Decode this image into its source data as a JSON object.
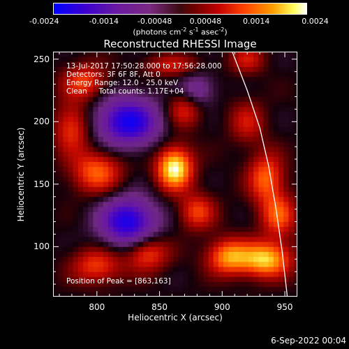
{
  "chart_data": {
    "type": "heatmap",
    "title": "Reconstructed RHESSI Image",
    "xlabel": "Heliocentric X (arcsec)",
    "ylabel": "Heliocentric Y (arcsec)",
    "xlim": [
      765,
      960
    ],
    "ylim": [
      60,
      256
    ],
    "xticks": [
      "800",
      "850",
      "900",
      "950"
    ],
    "yticks": [
      "100",
      "150",
      "200",
      "250"
    ],
    "colorbar": {
      "range": [
        -0.0024,
        0.0024
      ],
      "ticks": [
        "-0.0024",
        "-0.0014",
        "-0.00048",
        "0.00048",
        "0.0014",
        "0.0024"
      ],
      "unit_main": "(photons cm",
      "unit_exp1": "-2",
      "unit_mid1": " s",
      "unit_exp2": "-1",
      "unit_mid2": " asec",
      "unit_exp3": "-2",
      "unit_end": ")",
      "colormap": "blue-purple-black-red-orange-yellow-white"
    },
    "info_lines": [
      "13-Jul-2017 17:50:28.000 to 17:56:28.000",
      "Detectors: 3F 6F 8F, Att 0",
      "Energy Range: 12.0 - 25.0 keV",
      "Clean     Total counts: 1.17E+04"
    ],
    "peak_label": "Position of Peak = [863,163]",
    "peak": [
      863,
      163
    ],
    "sources": [
      {
        "x": 862,
        "y": 163,
        "intensity": 1.0,
        "sx": 10,
        "sy": 12
      },
      {
        "x": 935,
        "y": 90,
        "intensity": 0.85,
        "sx": 14,
        "sy": 10
      },
      {
        "x": 905,
        "y": 92,
        "intensity": 0.7,
        "sx": 12,
        "sy": 10
      },
      {
        "x": 935,
        "y": 155,
        "intensity": 0.6,
        "sx": 10,
        "sy": 14
      },
      {
        "x": 945,
        "y": 125,
        "intensity": 0.55,
        "sx": 10,
        "sy": 12
      },
      {
        "x": 800,
        "y": 160,
        "intensity": 0.6,
        "sx": 14,
        "sy": 12
      },
      {
        "x": 780,
        "y": 195,
        "intensity": 0.5,
        "sx": 10,
        "sy": 14
      },
      {
        "x": 800,
        "y": 85,
        "intensity": 0.5,
        "sx": 14,
        "sy": 10
      },
      {
        "x": 840,
        "y": 95,
        "intensity": 0.55,
        "sx": 12,
        "sy": 10
      },
      {
        "x": 880,
        "y": 128,
        "intensity": 0.5,
        "sx": 10,
        "sy": 10
      },
      {
        "x": 870,
        "y": 210,
        "intensity": 0.45,
        "sx": 10,
        "sy": 10
      },
      {
        "x": 790,
        "y": 232,
        "intensity": 0.5,
        "sx": 12,
        "sy": 10
      },
      {
        "x": 860,
        "y": 245,
        "intensity": 0.35,
        "sx": 16,
        "sy": 6
      },
      {
        "x": 920,
        "y": 200,
        "intensity": 0.35,
        "sx": 10,
        "sy": 12
      },
      {
        "x": 920,
        "y": 250,
        "intensity": 0.35,
        "sx": 10,
        "sy": 8
      },
      {
        "x": 825,
        "y": 200,
        "intensity": -0.9,
        "sx": 18,
        "sy": 14
      },
      {
        "x": 825,
        "y": 120,
        "intensity": -0.9,
        "sx": 16,
        "sy": 14
      },
      {
        "x": 880,
        "y": 225,
        "intensity": -0.4,
        "sx": 10,
        "sy": 10
      }
    ],
    "limb": [
      [
        908,
        256
      ],
      [
        920,
        225
      ],
      [
        930,
        195
      ],
      [
        937,
        165
      ],
      [
        943,
        130
      ],
      [
        948,
        95
      ],
      [
        952,
        60
      ]
    ],
    "grid": false
  },
  "footer": {
    "date": "6-Sep-2022 00:04"
  }
}
